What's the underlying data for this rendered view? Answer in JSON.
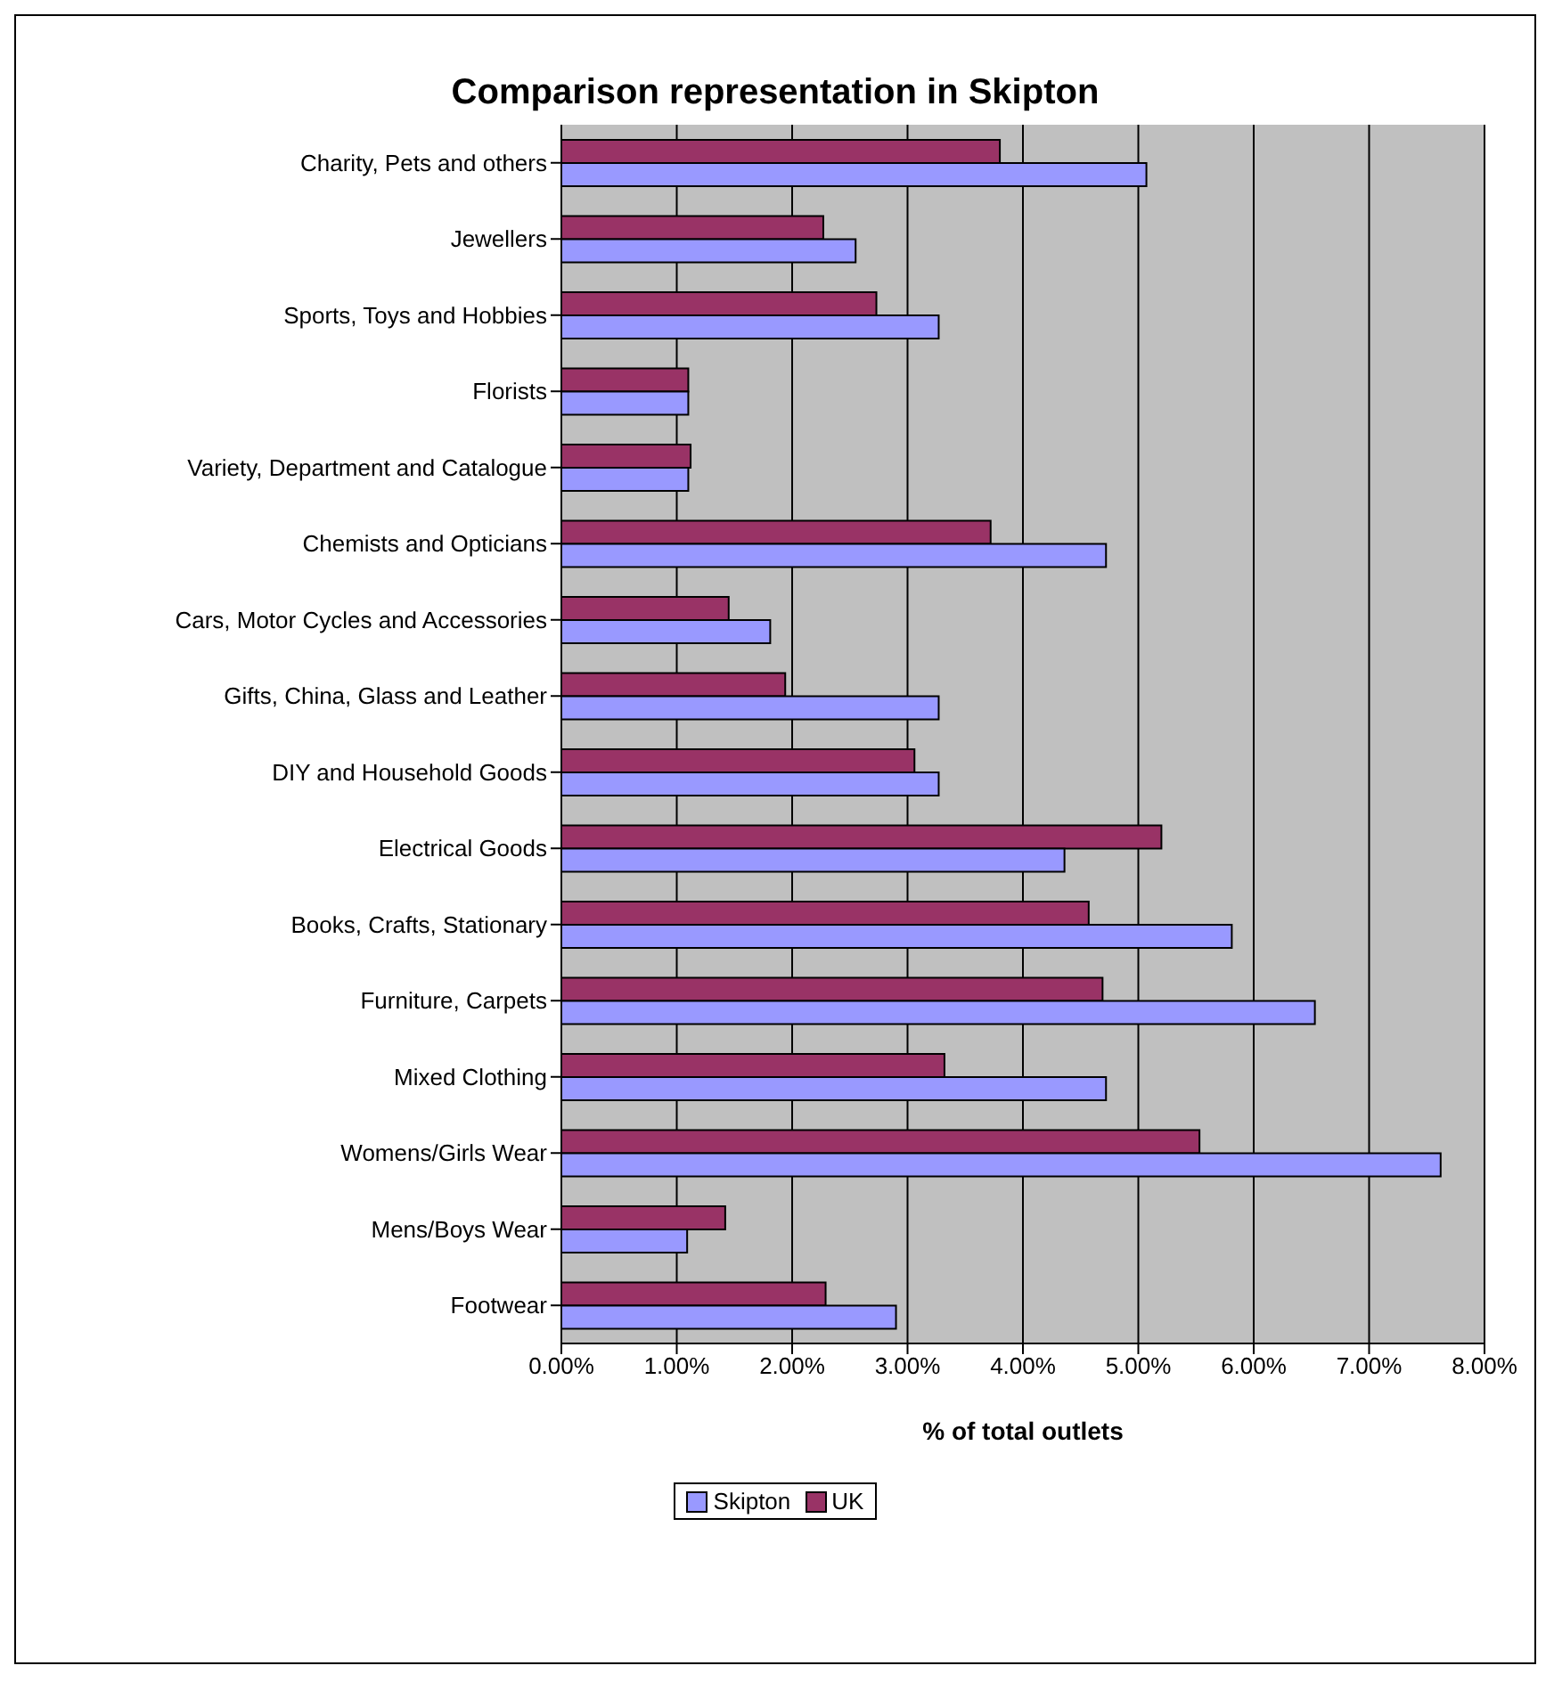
{
  "chart_data": {
    "type": "bar",
    "orientation": "horizontal",
    "title": "Comparison representation in Skipton",
    "xlabel": "% of total outlets",
    "categories": [
      "Charity, Pets and others",
      "Jewellers",
      "Sports, Toys and Hobbies",
      "Florists",
      "Variety, Department and Catalogue",
      "Chemists and Opticians",
      "Cars, Motor Cycles and Accessories",
      "Gifts, China, Glass and Leather",
      "DIY and Household Goods",
      "Electrical Goods",
      "Books, Crafts, Stationary",
      "Furniture, Carpets",
      "Mixed Clothing",
      "Womens/Girls Wear",
      "Mens/Boys Wear",
      "Footwear"
    ],
    "series": [
      {
        "name": "Skipton",
        "color": "#9999ff",
        "values": [
          5.07,
          2.55,
          3.27,
          1.1,
          1.1,
          4.72,
          1.81,
          3.27,
          3.27,
          4.36,
          5.81,
          6.53,
          4.72,
          7.62,
          1.09,
          2.9
        ]
      },
      {
        "name": "UK",
        "color": "#993366",
        "values": [
          3.8,
          2.27,
          2.73,
          1.1,
          1.12,
          3.72,
          1.45,
          1.94,
          3.06,
          5.2,
          4.57,
          4.69,
          3.32,
          5.53,
          1.42,
          2.29
        ]
      }
    ],
    "xlim": [
      0,
      8
    ],
    "xticks": [
      {
        "value": 0,
        "label": "0.00%"
      },
      {
        "value": 1,
        "label": "1.00%"
      },
      {
        "value": 2,
        "label": "2.00%"
      },
      {
        "value": 3,
        "label": "3.00%"
      },
      {
        "value": 4,
        "label": "4.00%"
      },
      {
        "value": 5,
        "label": "5.00%"
      },
      {
        "value": 6,
        "label": "6.00%"
      },
      {
        "value": 7,
        "label": "7.00%"
      },
      {
        "value": 8,
        "label": "8.00%"
      }
    ],
    "grid": "x",
    "legend": "bottom"
  }
}
